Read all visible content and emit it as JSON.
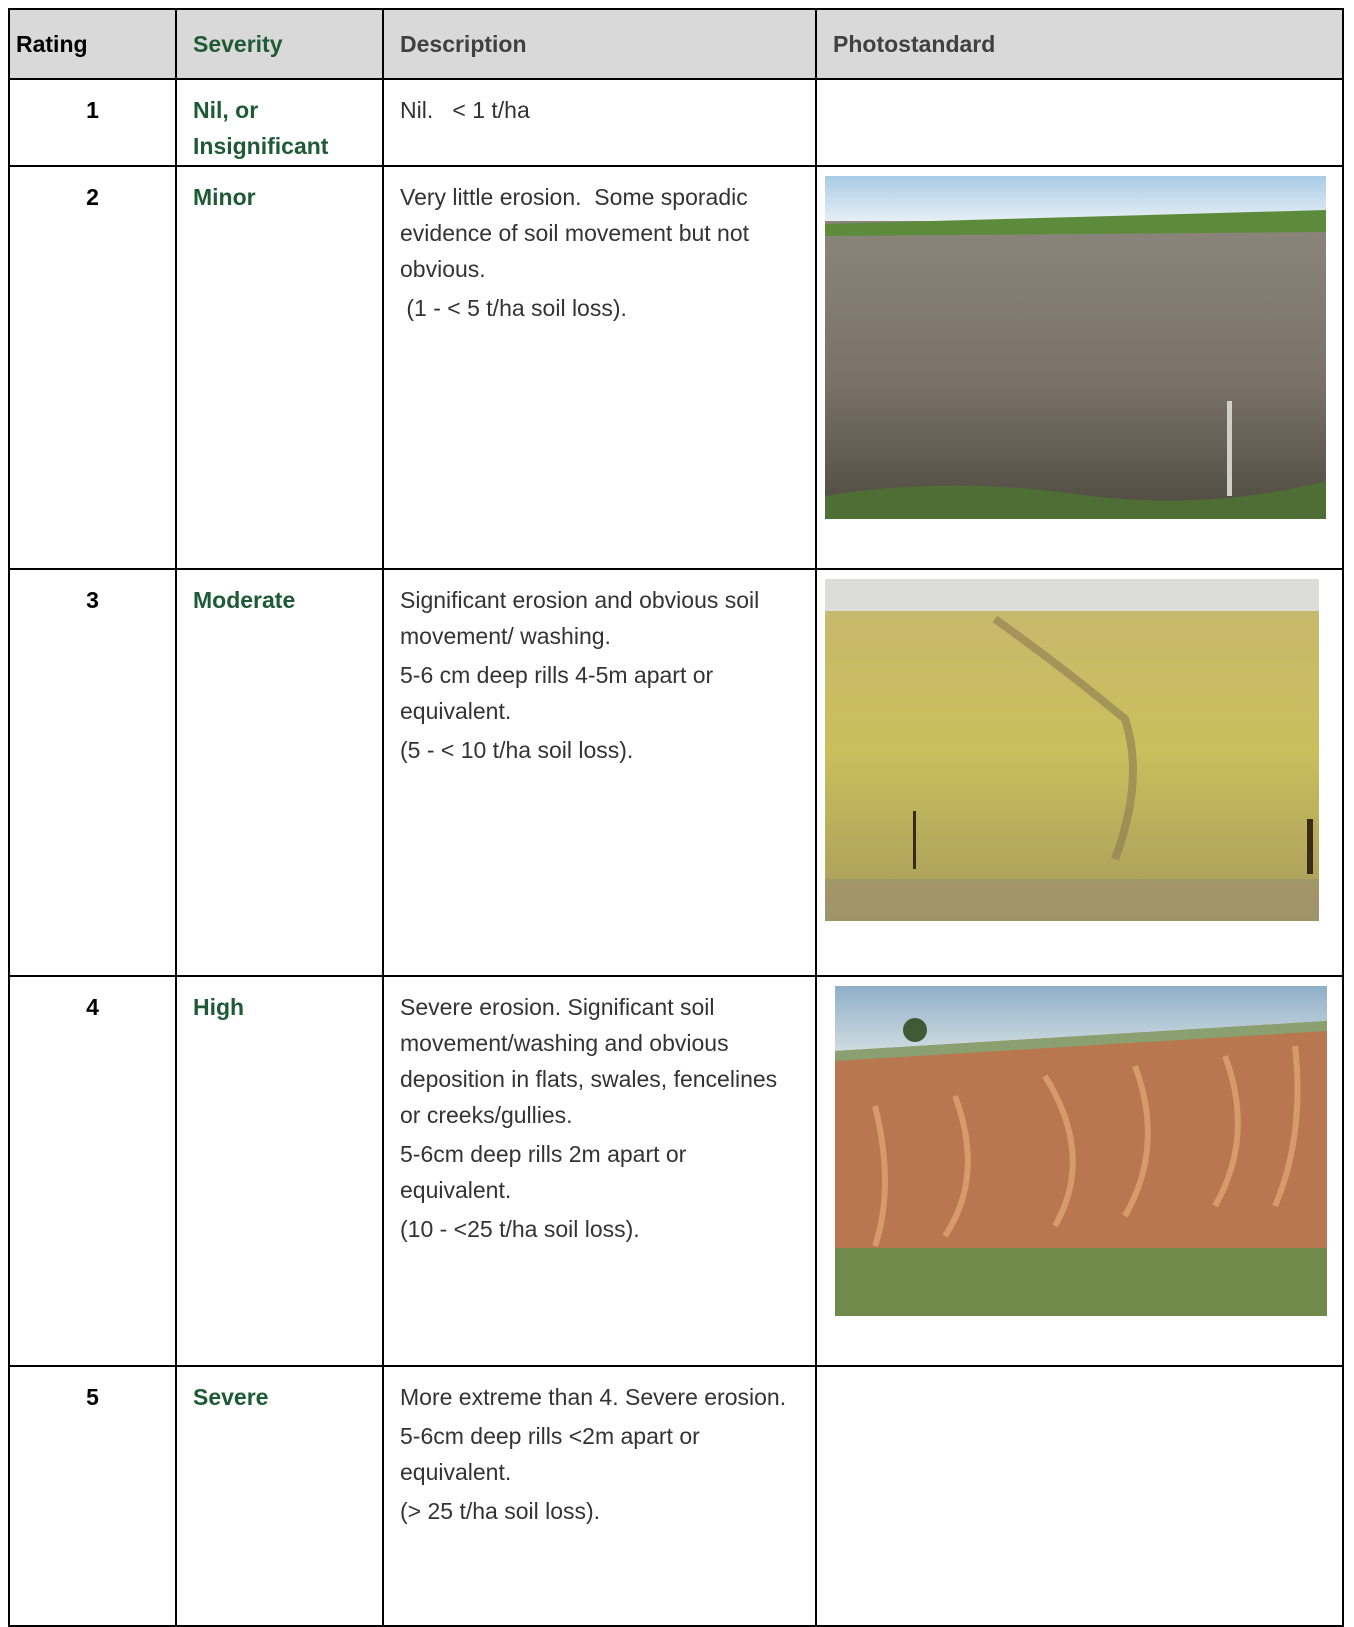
{
  "table": {
    "header": [
      "Rating",
      "Severity",
      "Description",
      "Photostandard"
    ],
    "rows": [
      {
        "rating": "1",
        "severity": "Nil, or Insignificant",
        "description": [
          "Nil.   < 1 t/ha"
        ]
      },
      {
        "rating": "2",
        "severity": "Minor",
        "description": [
          "Very little erosion.  Some sporadic evidence of soil movement but not obvious.",
          " (1 - < 5 t/ha soil loss)."
        ]
      },
      {
        "rating": "3",
        "severity": "Moderate",
        "description": [
          "Significant erosion and obvious soil movement/ washing.",
          "5-6 cm deep rills 4-5m apart or equivalent.",
          "(5 - < 10 t/ha soil loss)."
        ]
      },
      {
        "rating": "4",
        "severity": "High",
        "description": [
          "Severe erosion. Significant soil movement/washing and obvious deposition in flats, swales, fencelines or creeks/gullies.",
          "5-6cm deep rills 2m apart or equivalent.",
          "(10 - <25 t/ha soil loss)."
        ]
      },
      {
        "rating": "5",
        "severity": "Severe",
        "description": [
          "More extreme than 4. Severe erosion.",
          "5-6cm deep rills <2m apart or equivalent.",
          "(> 25 t/ha soil loss)."
        ]
      }
    ]
  }
}
